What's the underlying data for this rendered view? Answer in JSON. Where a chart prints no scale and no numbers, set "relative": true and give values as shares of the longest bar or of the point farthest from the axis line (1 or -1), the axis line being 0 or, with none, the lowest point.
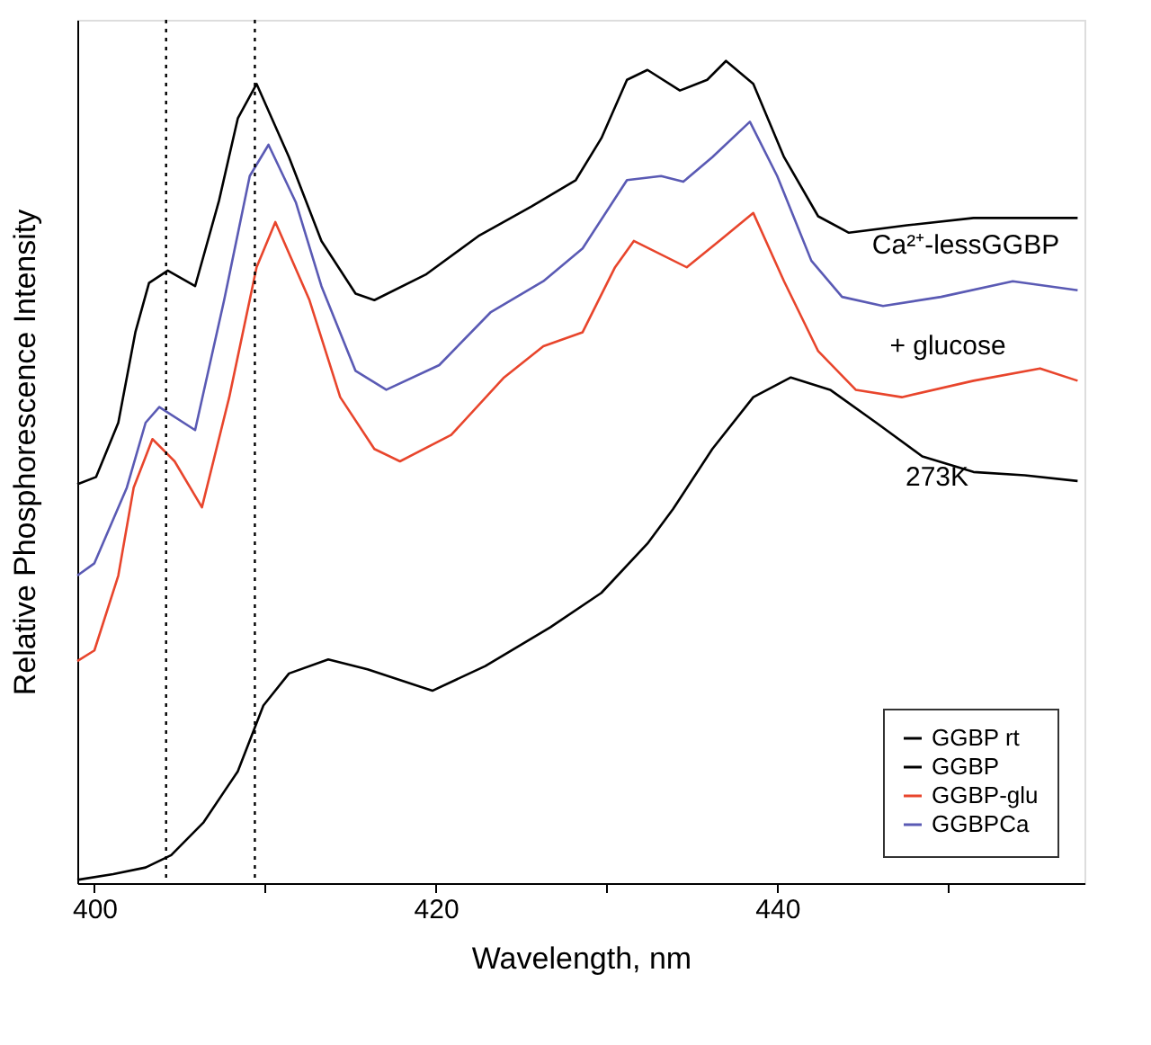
{
  "chart_data": {
    "type": "line",
    "xlabel": "Wavelength, nm",
    "ylabel": "Relative Phosphorescence Intensity",
    "relative": true,
    "xlim": [
      399,
      458
    ],
    "xticks": [
      400,
      {
        "value": 410,
        "label": null
      },
      420,
      {
        "value": 430,
        "label": null
      },
      440,
      {
        "value": 450,
        "label": null
      }
    ],
    "legend": "bottom right",
    "grid": false,
    "marker": "none",
    "line_style": "solid",
    "ref_lines": [
      {
        "axis": "x",
        "value": 404.2,
        "label": null,
        "color": "#000000",
        "line_style": "dotted"
      },
      {
        "axis": "x",
        "value": 409.4,
        "label": null,
        "color": "#000000",
        "line_style": "dotted"
      }
    ],
    "annotations": [
      "Ca²⁺-lessGGBP",
      "+ glucose",
      "273K"
    ],
    "series": [
      {
        "name": "GGBP rt",
        "color": "#000000",
        "x": [
          399,
          401.1,
          403.0,
          404.5,
          406.4,
          408.4,
          409.9,
          411.4,
          413.7,
          416.0,
          419.8,
          422.9,
          426.7,
          429.7,
          432.4,
          433.9,
          436.2,
          438.6,
          440.8,
          443.1,
          445.8,
          448.5,
          451.5,
          454.5,
          457.6
        ],
        "values": [
          0.004,
          0.011,
          0.019,
          0.034,
          0.074,
          0.136,
          0.216,
          0.255,
          0.272,
          0.26,
          0.234,
          0.264,
          0.311,
          0.353,
          0.413,
          0.455,
          0.528,
          0.591,
          0.615,
          0.6,
          0.56,
          0.519,
          0.5,
          0.496,
          0.489
        ]
      },
      {
        "name": "GGBP",
        "color": "#000000",
        "x": [
          399,
          400.1,
          401.4,
          402.4,
          403.2,
          404.3,
          405.9,
          407.3,
          408.4,
          409.5,
          411.4,
          413.3,
          415.3,
          416.4,
          419.4,
          422.5,
          425.6,
          428.2,
          429.7,
          431.2,
          432.4,
          434.3,
          435.9,
          437.0,
          438.6,
          440.4,
          442.4,
          444.2,
          447.6,
          451.5,
          457.6
        ],
        "values": [
          0.485,
          0.494,
          0.56,
          0.67,
          0.73,
          0.745,
          0.726,
          0.83,
          0.93,
          0.972,
          0.883,
          0.781,
          0.717,
          0.709,
          0.74,
          0.787,
          0.823,
          0.855,
          0.906,
          0.977,
          0.989,
          0.964,
          0.977,
          1.0,
          0.972,
          0.883,
          0.811,
          0.791,
          0.8,
          0.809,
          0.809
        ]
      },
      {
        "name": "GGBP-glu",
        "color": "#e8452c",
        "x": [
          399,
          400.0,
          401.4,
          402.3,
          403.4,
          404.7,
          406.3,
          407.9,
          409.5,
          410.6,
          412.6,
          414.4,
          416.4,
          417.9,
          420.9,
          424.0,
          426.3,
          428.6,
          430.5,
          431.6,
          434.7,
          436.6,
          438.6,
          440.4,
          442.4,
          444.6,
          447.3,
          451.5,
          455.4,
          457.6
        ],
        "values": [
          0.27,
          0.283,
          0.374,
          0.481,
          0.54,
          0.513,
          0.457,
          0.591,
          0.749,
          0.804,
          0.709,
          0.591,
          0.528,
          0.513,
          0.545,
          0.615,
          0.653,
          0.67,
          0.749,
          0.781,
          0.749,
          0.781,
          0.815,
          0.732,
          0.647,
          0.6,
          0.591,
          0.611,
          0.626,
          0.611
        ]
      },
      {
        "name": "GGBPCa",
        "color": "#5a5ab4",
        "x": [
          399,
          400.0,
          401.9,
          403.0,
          403.8,
          405.9,
          407.6,
          409.1,
          410.2,
          411.8,
          413.3,
          415.3,
          417.1,
          420.2,
          423.2,
          426.3,
          428.6,
          431.2,
          433.2,
          434.5,
          436.2,
          438.4,
          440.0,
          442.0,
          443.8,
          446.2,
          449.6,
          453.8,
          457.6
        ],
        "values": [
          0.374,
          0.389,
          0.481,
          0.56,
          0.579,
          0.551,
          0.709,
          0.86,
          0.898,
          0.828,
          0.726,
          0.623,
          0.6,
          0.63,
          0.694,
          0.732,
          0.772,
          0.855,
          0.86,
          0.853,
          0.883,
          0.926,
          0.86,
          0.757,
          0.713,
          0.702,
          0.713,
          0.732,
          0.721
        ]
      }
    ]
  }
}
